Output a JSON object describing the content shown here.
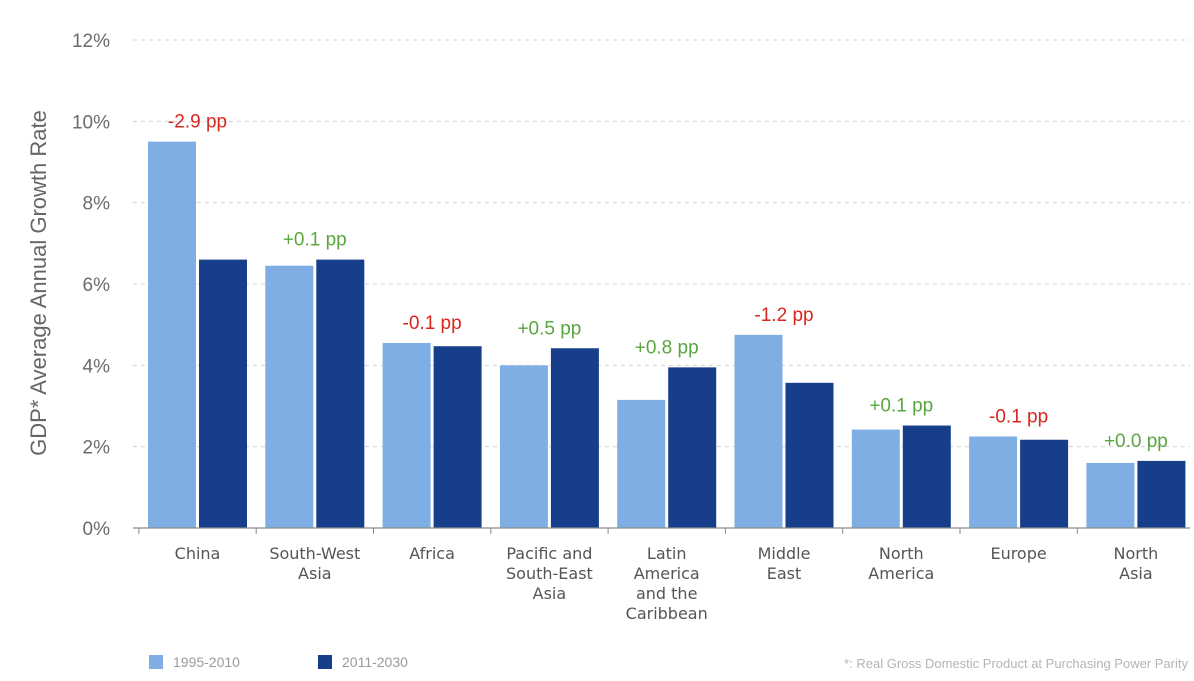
{
  "chart_data": {
    "type": "bar",
    "ylabel": "GDP* Average Annual Growth Rate",
    "ylim": [
      0,
      12
    ],
    "yticks": [
      0,
      2,
      4,
      6,
      8,
      10,
      12
    ],
    "yticklabels": [
      "0%",
      "2%",
      "4%",
      "6%",
      "8%",
      "10%",
      "12%"
    ],
    "grid": true,
    "categories": [
      [
        "China"
      ],
      [
        "South-West",
        "Asia"
      ],
      [
        "Africa"
      ],
      [
        "Pacific and",
        "South-East",
        "Asia"
      ],
      [
        "Latin",
        "America",
        "and the",
        "Caribbean"
      ],
      [
        "Middle",
        "East"
      ],
      [
        "North",
        "America"
      ],
      [
        "Europe"
      ],
      [
        "North",
        "Asia"
      ]
    ],
    "series": [
      {
        "name": "1995-2010",
        "color": "#7eaee3",
        "values": [
          9.5,
          6.45,
          4.55,
          4.0,
          3.15,
          4.75,
          2.42,
          2.25,
          1.6
        ]
      },
      {
        "name": "2011-2030",
        "color": "#163e8b",
        "values": [
          6.6,
          6.6,
          4.47,
          4.42,
          3.95,
          3.57,
          2.52,
          2.17,
          1.65
        ]
      }
    ],
    "annotations": [
      {
        "text": "-2.9 pp",
        "color": "#d7261e"
      },
      {
        "text": "+0.1 pp",
        "color": "#5aa641"
      },
      {
        "text": "-0.1 pp",
        "color": "#d7261e"
      },
      {
        "text": "+0.5 pp",
        "color": "#5aa641"
      },
      {
        "text": "+0.8 pp",
        "color": "#5aa641"
      },
      {
        "text": "-1.2 pp",
        "color": "#d7261e"
      },
      {
        "text": "+0.1 pp",
        "color": "#5aa641"
      },
      {
        "text": "-0.1 pp",
        "color": "#d7261e"
      },
      {
        "text": "+0.0 pp",
        "color": "#5aa641"
      }
    ],
    "legend": {
      "position": "bottom-left"
    },
    "footnote": "*: Real Gross Domestic Product at Purchasing Power Parity"
  }
}
